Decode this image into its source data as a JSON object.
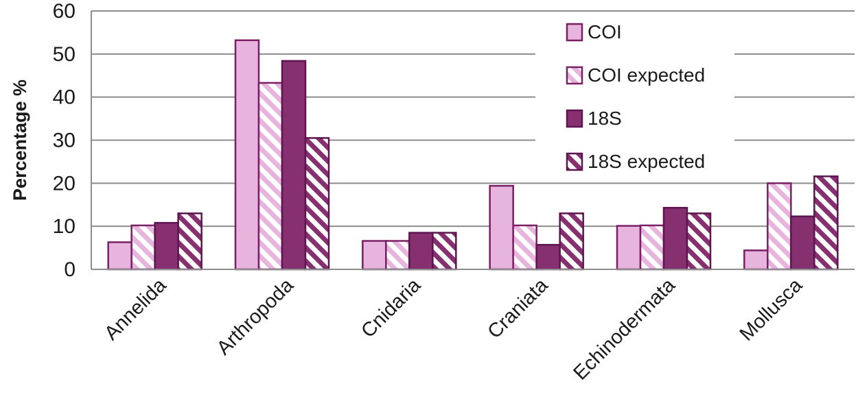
{
  "chart_data": {
    "type": "bar",
    "ylabel": "Percentage %",
    "xlabel": "",
    "ylim": [
      0,
      60
    ],
    "yticks": [
      0,
      10,
      20,
      30,
      40,
      50,
      60
    ],
    "grid": true,
    "legend_position": "top-right",
    "categories": [
      "Annelida",
      "Arthropoda",
      "Cnidaria",
      "Craniata",
      "Echinodermata",
      "Mollusca"
    ],
    "series": [
      {
        "name": "COI",
        "pattern": "solid",
        "fill": "#e6b4dc",
        "stroke": "#7a1f66",
        "values": [
          6.3,
          53.2,
          6.6,
          19.4,
          10.1,
          4.4
        ]
      },
      {
        "name": "COI expected",
        "pattern": "stripes",
        "fill": "#e6b4dc",
        "stroke": "#7a1f66",
        "values": [
          10.2,
          43.3,
          6.6,
          10.2,
          10.2,
          20.0
        ]
      },
      {
        "name": "18S",
        "pattern": "solid",
        "fill": "#86306f",
        "stroke": "#5c1550",
        "values": [
          10.8,
          48.4,
          8.5,
          5.7,
          14.3,
          12.3
        ]
      },
      {
        "name": "18S expected",
        "pattern": "stripes",
        "fill": "#86306f",
        "stroke": "#5c1550",
        "values": [
          13.0,
          30.5,
          8.5,
          13.0,
          13.0,
          21.6
        ]
      }
    ]
  }
}
